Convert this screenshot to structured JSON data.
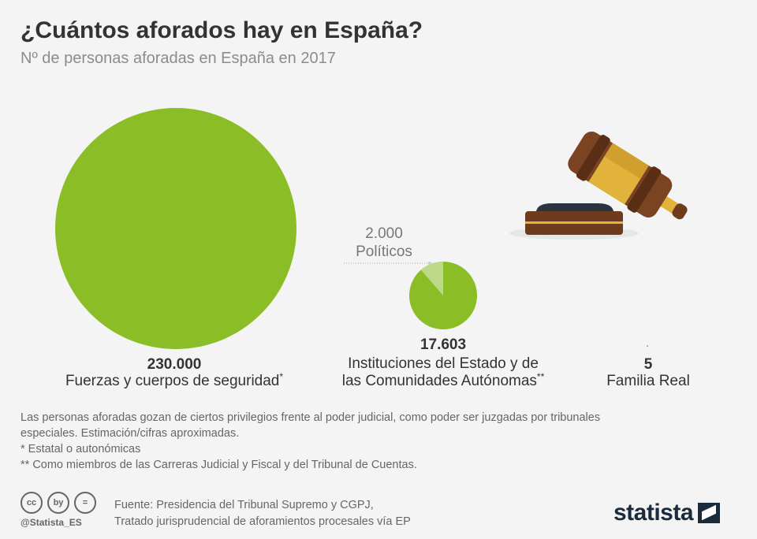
{
  "title": "¿Cuántos aforados hay en España?",
  "subtitle": "Nº de personas aforadas en España en 2017",
  "chart_data": {
    "type": "bubble",
    "title": "¿Cuántos aforados hay en España?",
    "subtitle": "Nº de personas aforadas en España en 2017",
    "categories": [
      {
        "value_label": "230.000",
        "label": "Fuerzas y cuerpos de seguridad",
        "label_mark": "*",
        "value": 230000
      },
      {
        "value_label": "17.603",
        "label_line1": "Instituciones del Estado y de",
        "label_line2": "las Comunidades Autónomas",
        "label_mark": "**",
        "value": 17603,
        "sub_slice": {
          "value_label": "2.000",
          "label": "Políticos",
          "value": 2000
        }
      },
      {
        "value_label": "5",
        "label": "Familia Real",
        "value": 5
      }
    ],
    "colors": {
      "main": "#8abd26",
      "slice": "#bcd98a"
    }
  },
  "notes": [
    "Las personas aforadas gozan de ciertos privilegios frente al poder judicial, como poder ser juzgadas por tribunales",
    "especiales. Estimación/cifras aproximadas.",
    "*   Estatal o autonómicas",
    "** Como miembros de las Carreras Judicial y Fiscal y del Tribunal de Cuentas."
  ],
  "cc_icons": [
    "cc",
    "by",
    "="
  ],
  "handle": "@Statista_ES",
  "source_lines": [
    "Fuente: Presidencia del Tribunal Supremo y CGPJ,",
    "Tratado jurisprudencial de aforamientos procesales vía EP"
  ],
  "brand": "statista"
}
